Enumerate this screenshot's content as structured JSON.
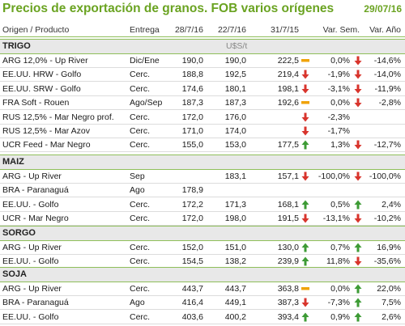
{
  "header": {
    "title": "Precios de exportación de granos. FOB varios orígenes",
    "date": "29/07/16"
  },
  "columns": {
    "origin": "Origen / Producto",
    "delivery": "Entrega",
    "d1": "28/7/16",
    "d2": "22/7/16",
    "d3": "31/7/15",
    "week": "Var. Sem.",
    "year": "Var. Año"
  },
  "unit": "U$S/t",
  "colors": {
    "accent": "#6aa321",
    "up": "#3d9b35",
    "down": "#d8342c",
    "flat": "#f0a30a"
  },
  "sections": [
    {
      "name": "TRIGO",
      "rows": [
        {
          "name": "ARG 12,0% - Up River",
          "delivery": "Dic/Ene",
          "v1": "190,0",
          "v2": "190,0",
          "v3": "222,5",
          "t1": "flat",
          "week": "0,0%",
          "t2": "down",
          "year": "-14,6%"
        },
        {
          "name": "EE.UU. HRW - Golfo",
          "delivery": "Cerc.",
          "v1": "188,8",
          "v2": "192,5",
          "v3": "219,4",
          "t1": "down",
          "week": "-1,9%",
          "t2": "down",
          "year": "-14,0%"
        },
        {
          "name": "EE.UU. SRW - Golfo",
          "delivery": "Cerc.",
          "v1": "174,6",
          "v2": "180,1",
          "v3": "198,1",
          "t1": "down",
          "week": "-3,1%",
          "t2": "down",
          "year": "-11,9%"
        },
        {
          "name": "FRA Soft - Rouen",
          "delivery": "Ago/Sep",
          "v1": "187,3",
          "v2": "187,3",
          "v3": "192,6",
          "t1": "flat",
          "week": "0,0%",
          "t2": "down",
          "year": "-2,8%"
        },
        {
          "name": "RUS 12,5% - Mar Negro prof.",
          "delivery": "Cerc.",
          "v1": "172,0",
          "v2": "176,0",
          "v3": "",
          "t1": "down",
          "week": "-2,3%",
          "t2": "",
          "year": ""
        },
        {
          "name": "RUS 12,5% - Mar Azov",
          "delivery": "Cerc.",
          "v1": "171,0",
          "v2": "174,0",
          "v3": "",
          "t1": "down",
          "week": "-1,7%",
          "t2": "",
          "year": ""
        },
        {
          "name": "UCR Feed - Mar Negro",
          "delivery": "Cerc.",
          "v1": "155,0",
          "v2": "153,0",
          "v3": "177,5",
          "t1": "up",
          "week": "1,3%",
          "t2": "down",
          "year": "-12,7%"
        }
      ]
    },
    {
      "name": "MAIZ",
      "rows": [
        {
          "name": "ARG - Up River",
          "delivery": "Sep",
          "v1": "",
          "v2": "183,1",
          "v3": "157,1",
          "t1": "down",
          "week": "-100,0%",
          "t2": "down",
          "year": "-100,0%"
        },
        {
          "name": "BRA - Paranaguá",
          "delivery": "Ago",
          "v1": "178,9",
          "v2": "",
          "v3": "",
          "t1": "",
          "week": "",
          "t2": "",
          "year": ""
        },
        {
          "name": "EE.UU. - Golfo",
          "delivery": "Cerc.",
          "v1": "172,2",
          "v2": "171,3",
          "v3": "168,1",
          "t1": "up",
          "week": "0,5%",
          "t2": "up",
          "year": "2,4%"
        },
        {
          "name": "UCR - Mar Negro",
          "delivery": "Cerc.",
          "v1": "172,0",
          "v2": "198,0",
          "v3": "191,5",
          "t1": "down",
          "week": "-13,1%",
          "t2": "down",
          "year": "-10,2%"
        }
      ]
    },
    {
      "name": "SORGO",
      "rows": [
        {
          "name": "ARG - Up River",
          "delivery": "Cerc.",
          "v1": "152,0",
          "v2": "151,0",
          "v3": "130,0",
          "t1": "up",
          "week": "0,7%",
          "t2": "up",
          "year": "16,9%"
        },
        {
          "name": "EE.UU. - Golfo",
          "delivery": "Cerc.",
          "v1": "154,5",
          "v2": "138,2",
          "v3": "239,9",
          "t1": "up",
          "week": "11,8%",
          "t2": "down",
          "year": "-35,6%"
        }
      ]
    },
    {
      "name": "SOJA",
      "rows": [
        {
          "name": "ARG - Up River",
          "delivery": "Cerc.",
          "v1": "443,7",
          "v2": "443,7",
          "v3": "363,8",
          "t1": "flat",
          "week": "0,0%",
          "t2": "up",
          "year": "22,0%"
        },
        {
          "name": "BRA - Paranaguá",
          "delivery": "Ago",
          "v1": "416,4",
          "v2": "449,1",
          "v3": "387,3",
          "t1": "down",
          "week": "-7,3%",
          "t2": "up",
          "year": "7,5%"
        },
        {
          "name": "EE.UU. - Golfo",
          "delivery": "Cerc.",
          "v1": "403,6",
          "v2": "400,2",
          "v3": "393,4",
          "t1": "up",
          "week": "0,9%",
          "t2": "up",
          "year": "2,6%"
        }
      ]
    }
  ]
}
